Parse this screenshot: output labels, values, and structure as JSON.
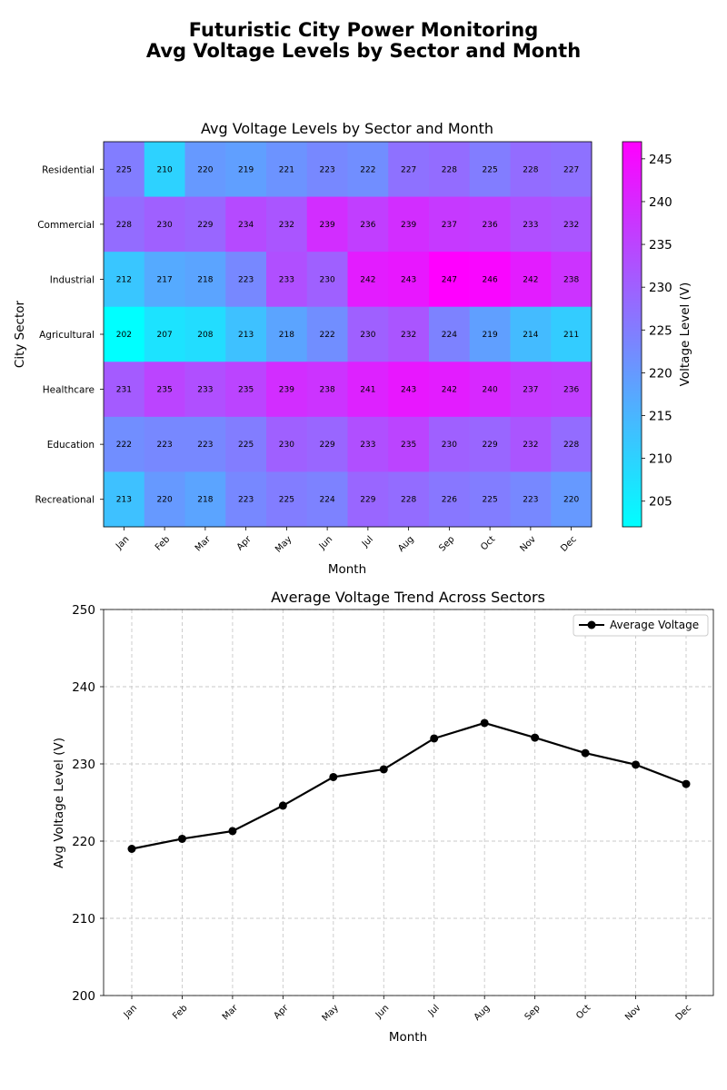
{
  "figure": {
    "title_line1": "Futuristic City Power Monitoring",
    "title_line2": "Avg Voltage Levels by Sector and Month"
  },
  "colors": {
    "cmap_low": "#00ffff",
    "cmap_high": "#ff00ff",
    "line": "#000000",
    "grid": "#c8c8c8"
  },
  "chart_data": [
    {
      "type": "heatmap",
      "title": "Avg Voltage Levels by Sector and Month",
      "xlabel": "Month",
      "ylabel": "City Sector",
      "colorbar_label": "Voltage Level (V)",
      "colormap": "cool",
      "vmin": 202,
      "vmax": 247,
      "colorbar_ticks": [
        205,
        210,
        215,
        220,
        225,
        230,
        235,
        240,
        245
      ],
      "x": [
        "Jan",
        "Feb",
        "Mar",
        "Apr",
        "May",
        "Jun",
        "Jul",
        "Aug",
        "Sep",
        "Oct",
        "Nov",
        "Dec"
      ],
      "y": [
        "Residential",
        "Commercial",
        "Industrial",
        "Agricultural",
        "Healthcare",
        "Education",
        "Recreational"
      ],
      "values": [
        [
          225,
          210,
          220,
          219,
          221,
          223,
          222,
          227,
          228,
          225,
          228,
          227
        ],
        [
          228,
          230,
          229,
          234,
          232,
          239,
          236,
          239,
          237,
          236,
          233,
          232
        ],
        [
          212,
          217,
          218,
          223,
          233,
          230,
          242,
          243,
          247,
          246,
          242,
          238
        ],
        [
          202,
          207,
          208,
          213,
          218,
          222,
          230,
          232,
          224,
          219,
          214,
          211
        ],
        [
          231,
          235,
          233,
          235,
          239,
          238,
          241,
          243,
          242,
          240,
          237,
          236
        ],
        [
          222,
          223,
          223,
          225,
          230,
          229,
          233,
          235,
          230,
          229,
          232,
          228
        ],
        [
          213,
          220,
          218,
          223,
          225,
          224,
          229,
          228,
          226,
          225,
          223,
          220
        ]
      ]
    },
    {
      "type": "line",
      "title": "Average Voltage Trend Across Sectors",
      "xlabel": "Month",
      "ylabel": "Avg Voltage Level (V)",
      "x": [
        "Jan",
        "Feb",
        "Mar",
        "Apr",
        "May",
        "Jun",
        "Jul",
        "Aug",
        "Sep",
        "Oct",
        "Nov",
        "Dec"
      ],
      "ylim": [
        200,
        250
      ],
      "yticks": [
        200,
        210,
        220,
        230,
        240,
        250
      ],
      "grid": true,
      "legend_position": "top-right",
      "series": [
        {
          "name": "Average Voltage",
          "values": [
            219.0,
            220.3,
            221.3,
            224.6,
            228.3,
            229.3,
            233.3,
            235.3,
            233.4,
            231.4,
            229.9,
            227.4
          ]
        }
      ]
    }
  ]
}
